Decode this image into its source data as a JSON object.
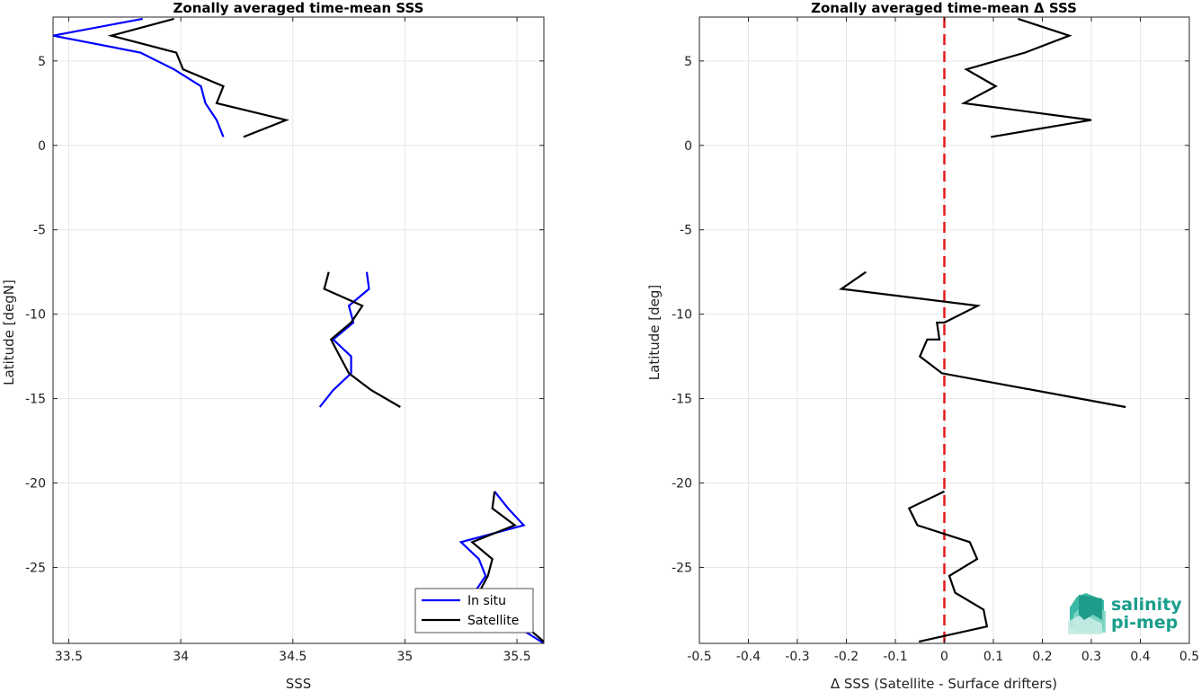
{
  "chart_data": [
    {
      "type": "line",
      "title": "Zonally averaged time-mean SSS",
      "xlabel": "SSS",
      "ylabel": "Latitude [degN]",
      "xlim": [
        33.43,
        35.62
      ],
      "ylim": [
        -29.5,
        7.6
      ],
      "xticks": [
        "33.5",
        "34",
        "34.5",
        "35",
        "35.5"
      ],
      "xtick_values": [
        33.5,
        34,
        34.5,
        35,
        35.5
      ],
      "yticks": [
        "5",
        "0",
        "-5",
        "-10",
        "-15",
        "-20",
        "-25"
      ],
      "ytick_values": [
        5,
        0,
        -5,
        -10,
        -15,
        -20,
        -25
      ],
      "grid": true,
      "legend_position": "bottom-right",
      "series": [
        {
          "name": "In situ",
          "color": "#0000ff",
          "segments": [
            [
              [
                33.83,
                7.5
              ],
              [
                33.43,
                6.5
              ],
              [
                33.82,
                5.5
              ],
              [
                33.97,
                4.5
              ],
              [
                34.09,
                3.5
              ],
              [
                34.11,
                2.5
              ],
              [
                34.16,
                1.5
              ],
              [
                34.19,
                0.5
              ]
            ],
            [
              [
                34.83,
                -7.5
              ],
              [
                34.84,
                -8.5
              ],
              [
                34.75,
                -9.5
              ],
              [
                34.77,
                -10.5
              ],
              [
                34.68,
                -11.5
              ],
              [
                34.76,
                -12.5
              ],
              [
                34.76,
                -13.5
              ],
              [
                34.68,
                -14.5
              ],
              [
                34.62,
                -15.5
              ]
            ],
            [
              [
                35.4,
                -20.5
              ],
              [
                35.46,
                -21.5
              ],
              [
                35.53,
                -22.5
              ],
              [
                35.25,
                -23.5
              ],
              [
                35.33,
                -24.5
              ],
              [
                35.36,
                -25.5
              ],
              [
                35.31,
                -26.5
              ],
              [
                35.28,
                -27.5
              ],
              [
                35.5,
                -28.5
              ],
              [
                35.62,
                -29.5
              ]
            ]
          ]
        },
        {
          "name": "Satellite",
          "color": "#000000",
          "segments": [
            [
              [
                33.97,
                7.5
              ],
              [
                33.69,
                6.5
              ],
              [
                33.98,
                5.5
              ],
              [
                34.01,
                4.5
              ],
              [
                34.19,
                3.5
              ],
              [
                34.16,
                2.5
              ],
              [
                34.47,
                1.5
              ],
              [
                34.28,
                0.5
              ]
            ],
            [
              [
                34.66,
                -7.5
              ],
              [
                34.64,
                -8.5
              ],
              [
                34.81,
                -9.5
              ],
              [
                34.76,
                -10.5
              ],
              [
                34.67,
                -11.5
              ],
              [
                34.71,
                -12.5
              ],
              [
                34.75,
                -13.5
              ],
              [
                34.85,
                -14.5
              ],
              [
                34.98,
                -15.5
              ]
            ],
            [
              [
                35.4,
                -20.5
              ],
              [
                35.39,
                -21.5
              ],
              [
                35.49,
                -22.5
              ],
              [
                35.3,
                -23.5
              ],
              [
                35.39,
                -24.5
              ],
              [
                35.37,
                -25.5
              ],
              [
                35.33,
                -26.5
              ],
              [
                35.33,
                -27.5
              ],
              [
                35.54,
                -28.5
              ],
              [
                35.62,
                -29.4
              ]
            ]
          ]
        }
      ]
    },
    {
      "type": "line",
      "title": "Zonally averaged time-mean Δ SSS",
      "xlabel": "Δ SSS (Satellite - Surface drifters)",
      "ylabel": "Latitude [deg]",
      "xlim": [
        -0.5,
        0.5
      ],
      "ylim": [
        -29.5,
        7.6
      ],
      "xticks": [
        "-0.5",
        "-0.4",
        "-0.3",
        "-0.2",
        "-0.1",
        "0",
        "0.1",
        "0.2",
        "0.3",
        "0.4",
        "0.5"
      ],
      "xtick_values": [
        -0.5,
        -0.4,
        -0.3,
        -0.2,
        -0.1,
        0,
        0.1,
        0.2,
        0.3,
        0.4,
        0.5
      ],
      "yticks": [
        "5",
        "0",
        "-5",
        "-10",
        "-15",
        "-20",
        "-25"
      ],
      "ytick_values": [
        5,
        0,
        -5,
        -10,
        -15,
        -20,
        -25
      ],
      "grid": true,
      "reference_line": {
        "x": 0,
        "color": "#e41a1c",
        "style": "dashed"
      },
      "series": [
        {
          "color": "#000000",
          "segments": [
            [
              [
                0.15,
                7.5
              ],
              [
                0.255,
                6.5
              ],
              [
                0.165,
                5.5
              ],
              [
                0.045,
                4.5
              ],
              [
                0.105,
                3.5
              ],
              [
                0.04,
                2.5
              ],
              [
                0.3,
                1.5
              ],
              [
                0.095,
                0.5
              ]
            ],
            [
              [
                -0.16,
                -7.5
              ],
              [
                -0.21,
                -8.5
              ],
              [
                0.068,
                -9.5
              ],
              [
                0.0,
                -10.5
              ],
              [
                -0.015,
                -10.5
              ],
              [
                -0.01,
                -11.5
              ],
              [
                -0.035,
                -11.5
              ],
              [
                -0.05,
                -12.5
              ],
              [
                -0.005,
                -13.5
              ],
              [
                0.37,
                -15.5
              ]
            ],
            [
              [
                0.0,
                -20.5
              ],
              [
                -0.072,
                -21.5
              ],
              [
                -0.055,
                -22.5
              ],
              [
                0.052,
                -23.5
              ],
              [
                0.067,
                -24.5
              ],
              [
                0.01,
                -25.5
              ],
              [
                0.022,
                -26.5
              ],
              [
                0.08,
                -27.5
              ],
              [
                0.087,
                -28.5
              ],
              [
                -0.052,
                -29.4
              ]
            ]
          ]
        }
      ]
    }
  ],
  "logo": {
    "line1": "salinity",
    "line2": "pi-mep"
  }
}
